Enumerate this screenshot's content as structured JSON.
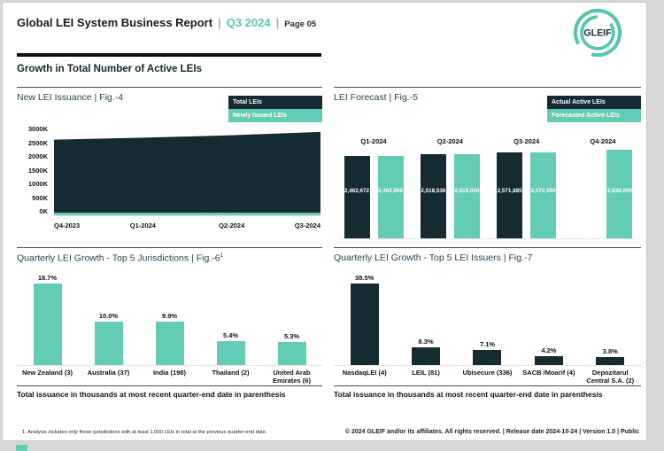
{
  "header": {
    "title": "Global LEI System Business Report",
    "separator": "|",
    "period": "Q3 2024",
    "page_label": "Page 05",
    "logo_text": "GLEIF"
  },
  "section": {
    "title": "Growth in Total Number of Active LEIs"
  },
  "colors": {
    "teal": "#63CCB4",
    "dark": "#152A31",
    "accent_text": "#58C7AE"
  },
  "chart_data": [
    {
      "id": "fig4",
      "type": "area",
      "title": "New LEI Issuance | Fig.-4",
      "legend": [
        {
          "label": "Total LEIs",
          "color": "dark"
        },
        {
          "label": "Newly Issued LEIs",
          "color": "teal"
        }
      ],
      "x": [
        "Q4-2023",
        "Q1-2024",
        "Q2-2024",
        "Q3-2024"
      ],
      "y_ticks": [
        "3000K",
        "2500K",
        "2000K",
        "1500K",
        "1000K",
        "500K",
        "0K"
      ],
      "ylim_k": [
        0,
        3000
      ],
      "series": [
        {
          "name": "Total LEIs",
          "color": "dark",
          "values_k": [
            2560,
            2630,
            2710,
            2825
          ]
        },
        {
          "name": "Newly Issued LEIs",
          "color": "teal",
          "values_k": [
            85,
            85,
            85,
            85
          ]
        }
      ],
      "legend_position": "top-right",
      "grid": false
    },
    {
      "id": "fig5",
      "type": "bar",
      "title": "LEI Forecast | Fig.-5",
      "legend": [
        {
          "label": "Actual Active LEIs",
          "color": "dark"
        },
        {
          "label": "Forecasted Active LEIs",
          "color": "teal"
        }
      ],
      "categories": [
        "Q1-2024",
        "Q2-2024",
        "Q3-2024",
        "Q4-2024"
      ],
      "series": [
        {
          "name": "Actual Active LEIs",
          "color": "dark",
          "values": [
            2462672,
            2518536,
            2571885,
            null
          ],
          "labels": [
            "2,462,672",
            "2,518,536",
            "2,571,885",
            ""
          ]
        },
        {
          "name": "Forecasted Active LEIs",
          "color": "teal",
          "values": [
            2462000,
            2519000,
            2572000,
            2638000
          ],
          "labels": [
            "2,462,000",
            "2,519,000",
            "2,572,000",
            "2,638,000"
          ]
        }
      ],
      "legend_position": "top-right",
      "grid": false
    },
    {
      "id": "fig6",
      "type": "bar",
      "title": "Quarterly LEI Growth - Top 5 Jurisdictions | Fig.-6",
      "title_sup": "1",
      "categories": [
        "New Zealand (3)",
        "Australia (37)",
        "India (198)",
        "Thailand (2)",
        "United Arab Emirates (6)"
      ],
      "values": [
        18.7,
        10.0,
        9.9,
        5.4,
        5.3
      ],
      "value_labels": [
        "18.7%",
        "10.0%",
        "9.9%",
        "5.4%",
        "5.3%"
      ],
      "bar_color": "teal",
      "note": "Total issuance in thousands at most recent quarter-end date in parenthesis",
      "grid": false
    },
    {
      "id": "fig7",
      "type": "bar",
      "title": "Quarterly LEI Growth - Top 5 LEI Issuers | Fig.-7",
      "categories": [
        "NasdaqLEI (4)",
        "LEIL (81)",
        "Ubisecure (336)",
        "SACB /Moarif (4)",
        "Depozitarul Central S.A. (2)"
      ],
      "values": [
        38.5,
        8.3,
        7.1,
        4.2,
        3.8
      ],
      "value_labels": [
        "38.5%",
        "8.3%",
        "7.1%",
        "4.2%",
        "3.8%"
      ],
      "bar_color": "dark",
      "note": "Total issuance in thousands at most recent quarter-end date in parenthesis",
      "grid": false
    }
  ],
  "footer": {
    "footnote": "1. Analysis includes only those jurisdictions with at least 1,000 LEIs in total at the previous quarter-end date.",
    "copyright": "© 2024 GLEIF and/or its affiliates. All rights reserved. | Release date 2024-10-24 | Version 1.0 | Public"
  }
}
